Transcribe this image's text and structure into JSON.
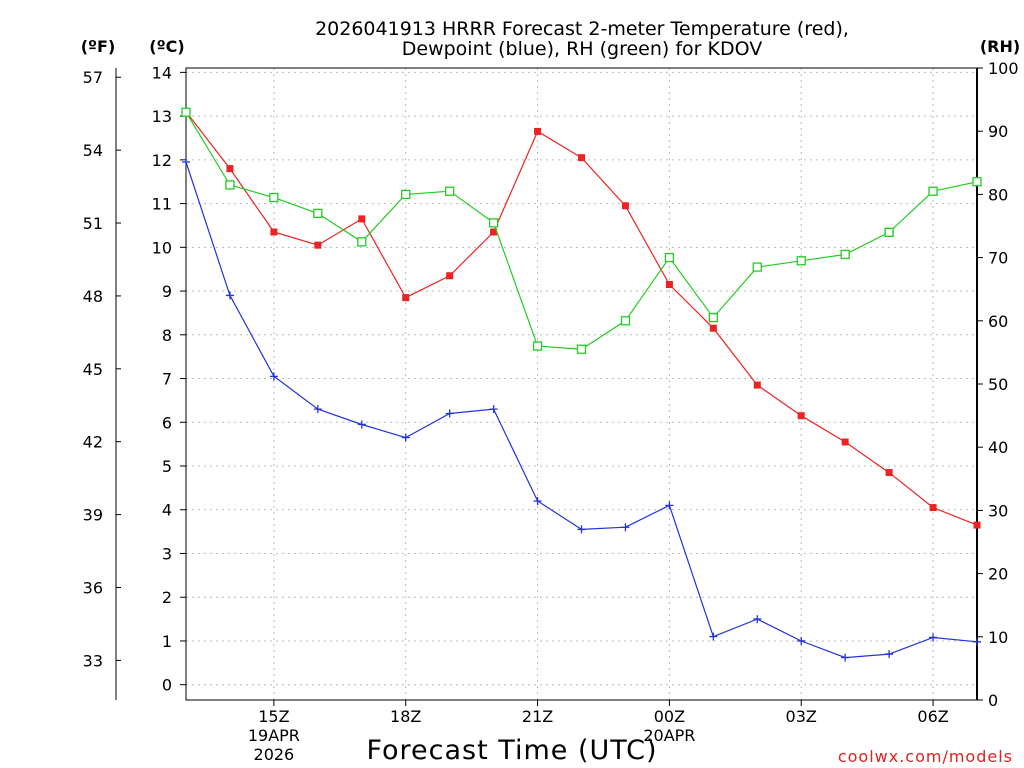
{
  "chart_data": {
    "type": "line",
    "title_line1": "2026041913 HRRR Forecast 2-meter Temperature (red),",
    "title_line2": "Dewpoint (blue), RH (green) for KDOV",
    "xlabel": "Forecast Time (UTC)",
    "credit": "coolwx.com/models",
    "units": {
      "fahrenheit": "(ºF)",
      "celsius": "(ºC)",
      "rh": "(RH)"
    },
    "celsius_axis": {
      "range": [
        -0.35,
        14.1
      ],
      "ticks": [
        "0",
        "1",
        "2",
        "3",
        "4",
        "5",
        "6",
        "7",
        "8",
        "9",
        "10",
        "11",
        "12",
        "13",
        "14"
      ]
    },
    "fahrenheit_axis": {
      "range": [
        31.37,
        57.38
      ],
      "ticks": [
        "33",
        "36",
        "39",
        "42",
        "45",
        "48",
        "51",
        "54",
        "57"
      ]
    },
    "rh_axis": {
      "range": [
        0,
        100
      ],
      "ticks": [
        "0",
        "10",
        "20",
        "30",
        "40",
        "50",
        "60",
        "70",
        "80",
        "90",
        "100"
      ]
    },
    "hours": [
      13,
      14,
      15,
      16,
      17,
      18,
      19,
      20,
      21,
      22,
      23,
      24,
      25,
      26,
      27,
      28,
      29,
      30,
      31
    ],
    "hour_range": [
      13,
      31
    ],
    "x_ticks": [
      {
        "hour": 15,
        "label": "15Z",
        "sub1": "19APR",
        "sub2": "2026"
      },
      {
        "hour": 18,
        "label": "18Z"
      },
      {
        "hour": 21,
        "label": "21Z"
      },
      {
        "hour": 24,
        "label": "00Z",
        "sub1": "20APR"
      },
      {
        "hour": 27,
        "label": "03Z"
      },
      {
        "hour": 30,
        "label": "06Z"
      }
    ],
    "series": [
      {
        "name": "Temperature",
        "axis": "celsius",
        "color": "#ee2222",
        "marker": "filled-square",
        "values": [
          13.1,
          11.8,
          10.35,
          10.05,
          10.65,
          8.85,
          9.35,
          10.35,
          12.65,
          12.05,
          10.95,
          9.15,
          8.15,
          6.85,
          6.15,
          5.55,
          4.85,
          4.05,
          3.65
        ]
      },
      {
        "name": "Dewpoint",
        "axis": "celsius",
        "color": "#2233dd",
        "marker": "plus",
        "values": [
          11.95,
          8.9,
          7.05,
          6.3,
          5.95,
          5.65,
          6.2,
          6.3,
          4.2,
          3.55,
          3.6,
          4.1,
          1.1,
          1.5,
          1.0,
          0.62,
          0.7,
          1.08,
          0.98
        ]
      },
      {
        "name": "RH",
        "axis": "rh",
        "color": "#22cc22",
        "marker": "open-square",
        "values": [
          93,
          81.5,
          79.5,
          77,
          72.5,
          80,
          80.5,
          75.5,
          56,
          55.5,
          60,
          70,
          60.5,
          68.5,
          69.5,
          70.5,
          74,
          80.5,
          82
        ]
      }
    ]
  }
}
